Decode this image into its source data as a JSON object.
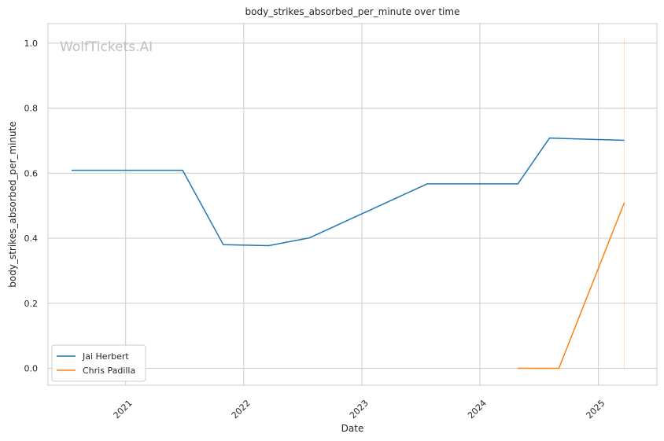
{
  "chart_data": {
    "type": "line",
    "title": "body_strikes_absorbed_per_minute over time",
    "xlabel": "Date",
    "ylabel": "body_strikes_absorbed_per_minute",
    "watermark": "WolfTickets.AI",
    "xlim": [
      "2020-05-06",
      "2025-07-01"
    ],
    "ylim": [
      -0.052,
      1.06
    ],
    "x_ticks": [
      "2021",
      "2022",
      "2023",
      "2024",
      "2025"
    ],
    "y_ticks": [
      "0.0",
      "0.2",
      "0.4",
      "0.6",
      "0.8",
      "1.0"
    ],
    "grid": true,
    "legend_position": "lower-left",
    "series": [
      {
        "name": "Jai Herbert",
        "color": "#1f77b4",
        "points": [
          {
            "x": "2020-07-18",
            "y": 0.609
          },
          {
            "x": "2021-06-26",
            "y": 0.609
          },
          {
            "x": "2021-10-30",
            "y": 0.38
          },
          {
            "x": "2022-03-19",
            "y": 0.377
          },
          {
            "x": "2022-07-23",
            "y": 0.401
          },
          {
            "x": "2023-07-22",
            "y": 0.567
          },
          {
            "x": "2024-04-27",
            "y": 0.567
          },
          {
            "x": "2024-08-03",
            "y": 0.708
          },
          {
            "x": "2025-03-22",
            "y": 0.701
          }
        ]
      },
      {
        "name": "Chris Padilla",
        "color": "#ff7f0e",
        "points": [
          {
            "x": "2024-04-27",
            "y": 0.0
          },
          {
            "x": "2024-09-01",
            "y": 0.0
          },
          {
            "x": "2025-03-22",
            "y": 0.509
          }
        ]
      }
    ],
    "reference_line": {
      "x": "2025-03-22",
      "y_from": 0.0,
      "y_to": 1.015,
      "color": "#ff7f0e"
    }
  }
}
